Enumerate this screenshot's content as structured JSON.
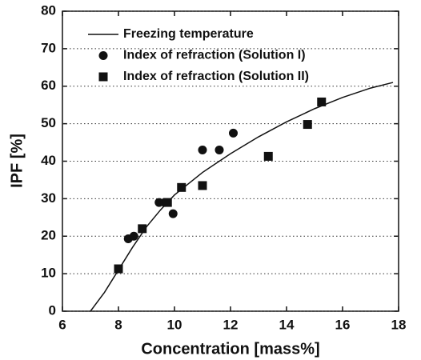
{
  "chart_data": {
    "type": "scatter",
    "xlabel": "Concentration [mass%]",
    "ylabel": "IPF [%]",
    "xlim": [
      6,
      18
    ],
    "ylim": [
      0,
      80
    ],
    "xticks": [
      6,
      8,
      10,
      12,
      14,
      16,
      18
    ],
    "yticks": [
      0,
      10,
      20,
      30,
      40,
      50,
      60,
      70,
      80
    ],
    "grid": true,
    "legend": "upper left",
    "series": [
      {
        "name": "Freezing temperature",
        "color": "#111111",
        "marker": "none",
        "x": [
          7.0,
          7.5,
          8.0,
          8.5,
          9.0,
          9.5,
          10.0,
          11.0,
          12.0,
          13.0,
          14.0,
          15.0,
          16.0,
          17.0,
          17.8
        ],
        "y": [
          0,
          5,
          11,
          17,
          22.5,
          27,
          31,
          37,
          42,
          46.5,
          50.5,
          54,
          57,
          59.5,
          61
        ]
      },
      {
        "name": "Index of refraction (Solution I)",
        "color": "#111111",
        "marker": "circle",
        "x": [
          8.35,
          8.55,
          9.45,
          9.65,
          9.95,
          11.0,
          11.6,
          12.1
        ],
        "y": [
          19.3,
          20,
          29,
          29,
          26,
          43,
          43,
          47.5
        ]
      },
      {
        "name": "Index of refraction (Solution II)",
        "color": "#111111",
        "marker": "square",
        "x": [
          8.0,
          8.85,
          9.75,
          10.25,
          11.0,
          13.35,
          14.75,
          15.25
        ],
        "y": [
          11.3,
          22,
          29,
          33,
          33.5,
          41.3,
          49.8,
          55.8
        ]
      }
    ]
  }
}
